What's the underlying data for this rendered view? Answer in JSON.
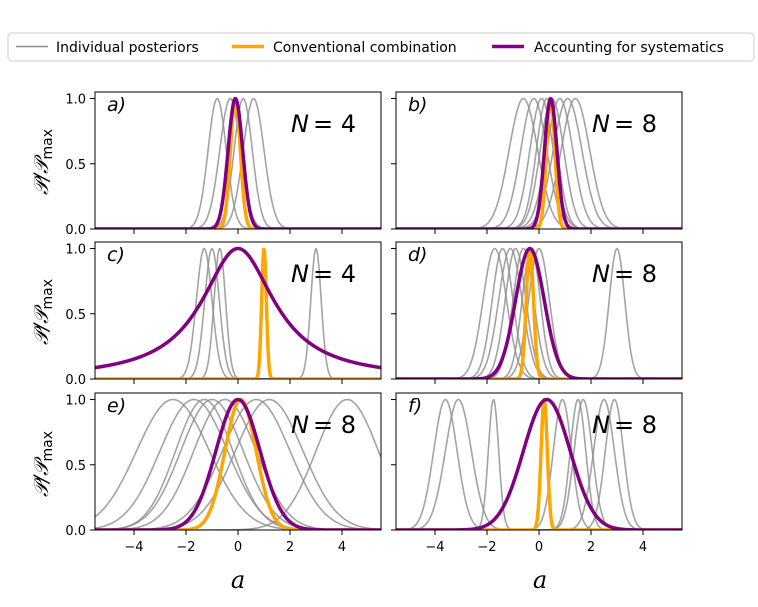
{
  "legend": {
    "items": [
      {
        "label": "Individual posteriors",
        "color": "#8c8c8c"
      },
      {
        "label": "Conventional combination",
        "color": "#ffa500"
      },
      {
        "label": "Accounting for systematics",
        "color": "#800080"
      }
    ]
  },
  "axes": {
    "xlabel": "a",
    "ylabel_main": "𝒫/𝒫",
    "ylabel_sub": "max",
    "xlim": [
      -5.5,
      5.5
    ],
    "ylim": [
      0,
      1.05
    ],
    "xticks": [
      "−4",
      "−2",
      "0",
      "2",
      "4"
    ],
    "xtick_values": [
      -4,
      -2,
      0,
      2,
      4
    ],
    "yticks": [
      "0.0",
      "0.5",
      "1.0"
    ],
    "ytick_values": [
      0,
      0.5,
      1.0
    ]
  },
  "chart_data": [
    {
      "panel": "a)",
      "type": "line",
      "n_label_prefix": "N",
      "n_label_value": "= 4",
      "individual": [
        {
          "mu": -0.8,
          "sigma": 0.35
        },
        {
          "mu": -0.3,
          "sigma": 0.4
        },
        {
          "mu": 0.2,
          "sigma": 0.35
        },
        {
          "mu": 0.6,
          "sigma": 0.4
        }
      ],
      "conventional": {
        "mu": -0.1,
        "sigma": 0.19,
        "shape": "gaussian"
      },
      "systematics": {
        "mu": -0.1,
        "sigma": 0.28,
        "shape": "gaussian"
      }
    },
    {
      "panel": "b)",
      "type": "line",
      "n_label_prefix": "N",
      "n_label_value": "= 8",
      "individual": [
        {
          "mu": -0.6,
          "sigma": 0.55
        },
        {
          "mu": -0.2,
          "sigma": 0.5
        },
        {
          "mu": 0.1,
          "sigma": 0.45
        },
        {
          "mu": 0.3,
          "sigma": 0.4
        },
        {
          "mu": 0.5,
          "sigma": 0.45
        },
        {
          "mu": 0.8,
          "sigma": 0.5
        },
        {
          "mu": 1.1,
          "sigma": 0.55
        },
        {
          "mu": 1.4,
          "sigma": 0.55
        }
      ],
      "conventional": {
        "mu": 0.45,
        "sigma": 0.16,
        "shape": "gaussian"
      },
      "systematics": {
        "mu": 0.45,
        "sigma": 0.24,
        "shape": "gaussian"
      }
    },
    {
      "panel": "c)",
      "type": "line",
      "n_label_prefix": "N",
      "n_label_value": "= 4",
      "individual": [
        {
          "mu": -1.3,
          "sigma": 0.3
        },
        {
          "mu": -1.0,
          "sigma": 0.28
        },
        {
          "mu": -0.7,
          "sigma": 0.22
        },
        {
          "mu": 3.0,
          "sigma": 0.2
        }
      ],
      "conventional": {
        "mu": 1.0,
        "sigma": 0.09,
        "shape": "gaussian"
      },
      "systematics": {
        "mu": 0.0,
        "sigma": 1.7,
        "shape": "cauchy"
      }
    },
    {
      "panel": "d)",
      "type": "line",
      "n_label_prefix": "N",
      "n_label_value": "= 8",
      "individual": [
        {
          "mu": -1.7,
          "sigma": 0.45
        },
        {
          "mu": -1.4,
          "sigma": 0.4
        },
        {
          "mu": -1.1,
          "sigma": 0.45
        },
        {
          "mu": -0.9,
          "sigma": 0.4
        },
        {
          "mu": -0.6,
          "sigma": 0.4
        },
        {
          "mu": -0.3,
          "sigma": 0.35
        },
        {
          "mu": 0.0,
          "sigma": 0.4
        },
        {
          "mu": 3.0,
          "sigma": 0.3
        }
      ],
      "conventional": {
        "mu": -0.35,
        "sigma": 0.14,
        "shape": "gaussian"
      },
      "systematics": {
        "mu": -0.35,
        "sigma": 0.55,
        "shape": "gaussian"
      }
    },
    {
      "panel": "e)",
      "type": "line",
      "n_label_prefix": "N",
      "n_label_value": "= 8",
      "individual": [
        {
          "mu": -2.5,
          "sigma": 1.4
        },
        {
          "mu": -1.7,
          "sigma": 1.3
        },
        {
          "mu": -1.3,
          "sigma": 1.1
        },
        {
          "mu": -1.0,
          "sigma": 1.2
        },
        {
          "mu": -0.5,
          "sigma": 1.2
        },
        {
          "mu": 0.7,
          "sigma": 1.3
        },
        {
          "mu": 1.2,
          "sigma": 1.3
        },
        {
          "mu": 4.2,
          "sigma": 1.2
        }
      ],
      "conventional": {
        "mu": 0.1,
        "sigma": 0.6,
        "shape": "gaussian"
      },
      "systematics": {
        "mu": 0.0,
        "sigma": 0.85,
        "shape": "gaussian"
      }
    },
    {
      "panel": "f)",
      "type": "line",
      "n_label_prefix": "N",
      "n_label_value": "= 8",
      "individual": [
        {
          "mu": -3.6,
          "sigma": 0.45
        },
        {
          "mu": -3.1,
          "sigma": 0.5
        },
        {
          "mu": -1.75,
          "sigma": 0.2
        },
        {
          "mu": 0.9,
          "sigma": 0.35
        },
        {
          "mu": 1.5,
          "sigma": 0.3
        },
        {
          "mu": 1.7,
          "sigma": 0.35
        },
        {
          "mu": 2.5,
          "sigma": 0.4
        },
        {
          "mu": 2.9,
          "sigma": 0.35
        }
      ],
      "conventional": {
        "mu": 0.2,
        "sigma": 0.12,
        "shape": "gaussian"
      },
      "systematics": {
        "mu": 0.3,
        "sigma": 0.9,
        "shape": "gaussian"
      }
    }
  ]
}
